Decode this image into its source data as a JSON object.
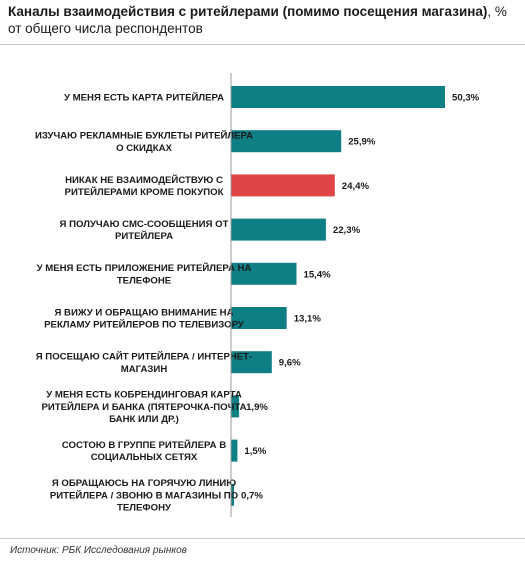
{
  "header": {
    "title_bold": "Каналы взаимодействия с ритейлерами (помимо посещения магазина)",
    "title_rest": ", % от общего числа респондентов"
  },
  "source": "Источник: РБК Исследования рынков",
  "colors": {
    "default": "#0f7f86",
    "highlight": "#e04545",
    "axis": "#9a9a9a"
  },
  "chart_data": {
    "type": "bar",
    "orientation": "horizontal",
    "title": "Каналы взаимодействия с ритейлерами (помимо посещения магазина), % от общего числа респондентов",
    "unit": "%",
    "xlim": [
      0,
      55
    ],
    "grid": false,
    "categories": [
      [
        "У МЕНЯ ЕСТЬ КАРТА РИТЕЙЛЕРА"
      ],
      [
        "ИЗУЧАЮ РЕКЛАМНЫЕ БУКЛЕТЫ РИТЕЙЛЕРА",
        "О СКИДКАХ"
      ],
      [
        "НИКАК НЕ ВЗАИМОДЕЙСТВУЮ С",
        "РИТЕЙЛЕРАМИ КРОМЕ ПОКУПОК"
      ],
      [
        "Я ПОЛУЧАЮ СМС-СООБЩЕНИЯ ОТ",
        "РИТЕЙЛЕРА"
      ],
      [
        "У МЕНЯ ЕСТЬ ПРИЛОЖЕНИЕ РИТЕЙЛЕРА НА",
        "ТЕЛЕФОНЕ"
      ],
      [
        "Я ВИЖУ И ОБРАЩАЮ ВНИМАНИЕ НА",
        "РЕКЛАМУ РИТЕЙЛЕРОВ ПО ТЕЛЕВИЗОРУ"
      ],
      [
        "Я ПОСЕЩАЮ САЙТ РИТЕЙЛЕРА / ИНТЕРНЕТ-",
        "МАГАЗИН"
      ],
      [
        "У МЕНЯ ЕСТЬ КОБРЕНДИНГОВАЯ КАРТА",
        "РИТЕЙЛЕРА И БАНКА (ПЯТЕРОЧКА-ПОЧТА",
        "БАНК ИЛИ ДР.)"
      ],
      [
        "СОСТОЮ В ГРУППЕ РИТЕЙЛЕРА В",
        "СОЦИАЛЬНЫХ СЕТЯХ"
      ],
      [
        "Я ОБРАЩАЮСЬ НА ГОРЯЧУЮ ЛИНИЮ",
        "РИТЕЙЛЕРА / ЗВОНЮ В МАГАЗИНЫ ПО",
        "ТЕЛЕФОНУ"
      ]
    ],
    "values": [
      50.3,
      25.9,
      24.4,
      22.3,
      15.4,
      13.1,
      9.6,
      1.9,
      1.5,
      0.7
    ],
    "value_labels": [
      "50,3%",
      "25,9%",
      "24,4%",
      "22,3%",
      "15,4%",
      "13,1%",
      "9,6%",
      "1,9%",
      "1,5%",
      "0,7%"
    ],
    "highlight_index": 2
  }
}
